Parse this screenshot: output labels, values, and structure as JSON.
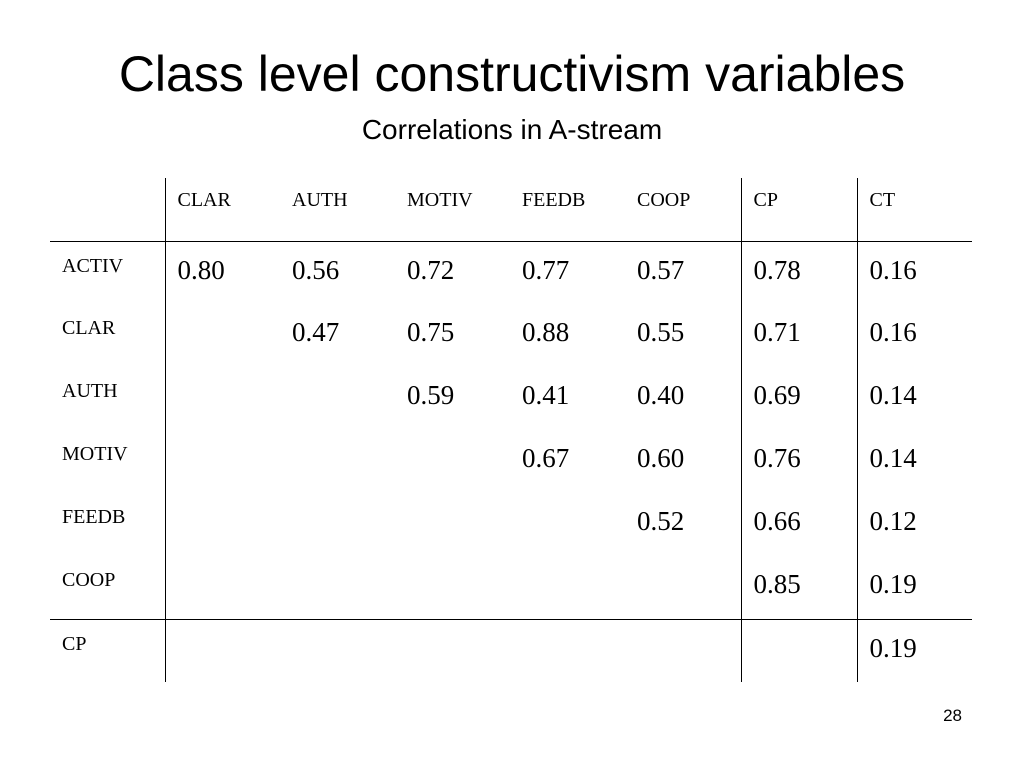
{
  "slide": {
    "title": "Class level constructivism variables",
    "subtitle": "Correlations in A-stream",
    "page_number": "28"
  },
  "table": {
    "columns": [
      "CLAR",
      "AUTH",
      "MOTIV",
      "FEEDB",
      "COOP",
      "CP",
      "CT"
    ],
    "rows": [
      {
        "label": "ACTIV",
        "cells": [
          "0.80",
          "0.56",
          "0.72",
          "0.77",
          "0.57",
          "0.78",
          "0.16"
        ]
      },
      {
        "label": "CLAR",
        "cells": [
          "",
          "0.47",
          "0.75",
          "0.88",
          "0.55",
          "0.71",
          "0.16"
        ]
      },
      {
        "label": "AUTH",
        "cells": [
          "",
          "",
          "0.59",
          "0.41",
          "0.40",
          "0.69",
          "0.14"
        ]
      },
      {
        "label": "MOTIV",
        "cells": [
          "",
          "",
          "",
          "0.67",
          "0.60",
          "0.76",
          "0.14"
        ]
      },
      {
        "label": "FEEDB",
        "cells": [
          "",
          "",
          "",
          "",
          "0.52",
          "0.66",
          "0.12"
        ]
      },
      {
        "label": "COOP",
        "cells": [
          "",
          "",
          "",
          "",
          "",
          "0.85",
          "0.19"
        ]
      },
      {
        "label": "CP",
        "cells": [
          "",
          "",
          "",
          "",
          "",
          "",
          "0.19"
        ]
      }
    ]
  }
}
